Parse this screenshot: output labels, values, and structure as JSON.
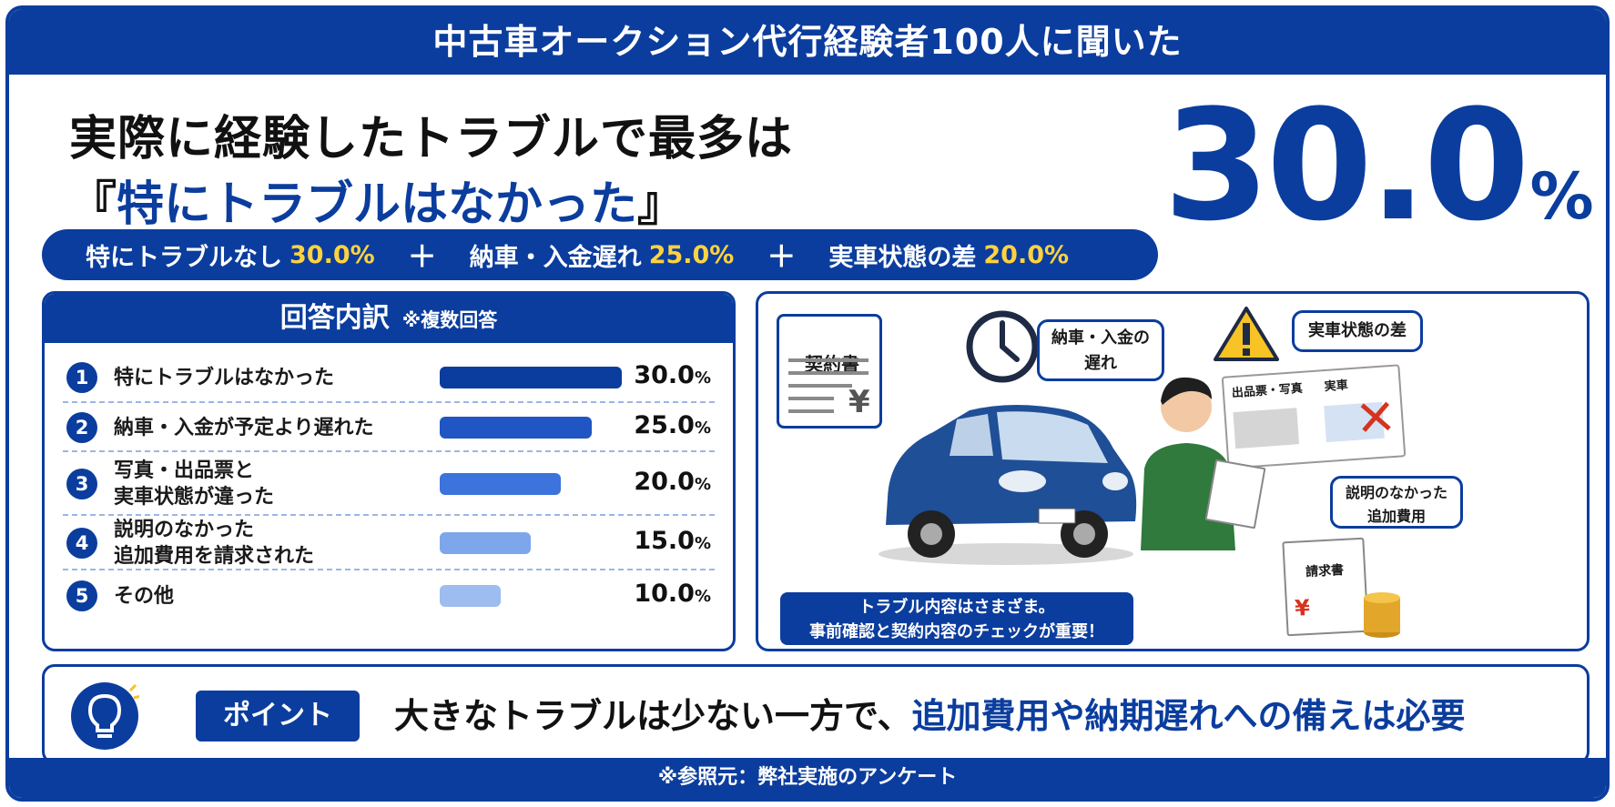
{
  "banner": "中古車オークション代行経験者100人に聞いた",
  "headline": {
    "line1": "実際に経験したトラブルで最多は",
    "line2_open": "『",
    "line2_highlight": "特にトラブルはなかった",
    "line2_close": "』"
  },
  "big_stat": {
    "number": "30.0",
    "unit": "%"
  },
  "summary": {
    "items": [
      {
        "label": "特にトラブルなし",
        "value": "30.0%"
      },
      {
        "label": "納車・入金遅れ",
        "value": "25.0%"
      },
      {
        "label": "実車状態の差",
        "value": "20.0%"
      }
    ],
    "plus": "＋"
  },
  "breakdown": {
    "title": "回答内訳",
    "note": "※複数回答",
    "rows": [
      {
        "num": "1",
        "label": "特にトラブルはなかった",
        "percent": 30.0,
        "value": "30.0",
        "unit": "%",
        "color": "#0b3d9e"
      },
      {
        "num": "2",
        "label": "納車・入金が予定より遅れた",
        "percent": 25.0,
        "value": "25.0",
        "unit": "%",
        "color": "#1f56c4"
      },
      {
        "num": "3",
        "label": "写真・出品票と\n実車状態が違った",
        "percent": 20.0,
        "value": "20.0",
        "unit": "%",
        "color": "#3c73dc"
      },
      {
        "num": "4",
        "label": "説明のなかった\n追加費用を請求された",
        "percent": 15.0,
        "value": "15.0",
        "unit": "%",
        "color": "#7ea6ea"
      },
      {
        "num": "5",
        "label": "その他",
        "percent": 10.0,
        "value": "10.0",
        "unit": "%",
        "color": "#9dbcf0"
      }
    ]
  },
  "illustration": {
    "contract_label": "契約書",
    "yen": "¥",
    "delay_bubble": "納車・入金の\n遅れ",
    "condition_bubble": "実車状態の差",
    "sheet_left": "出品票・写真",
    "sheet_right": "実車",
    "extra_cost_bubble": "説明のなかった\n追加費用",
    "invoice_label": "請求書",
    "note": "トラブル内容はさまざま。\n事前確認と契約内容のチェックが重要！"
  },
  "point": {
    "badge": "ポイント",
    "text_plain": "大きなトラブルは少ない一方で、",
    "text_highlight": "追加費用や納期遅れへの備えは必要"
  },
  "footer": "※参照元：弊社実施のアンケート",
  "colors": {
    "primary": "#0b3d9e",
    "accent_yellow": "#ffd23f",
    "warn_yellow": "#f7c325"
  }
}
